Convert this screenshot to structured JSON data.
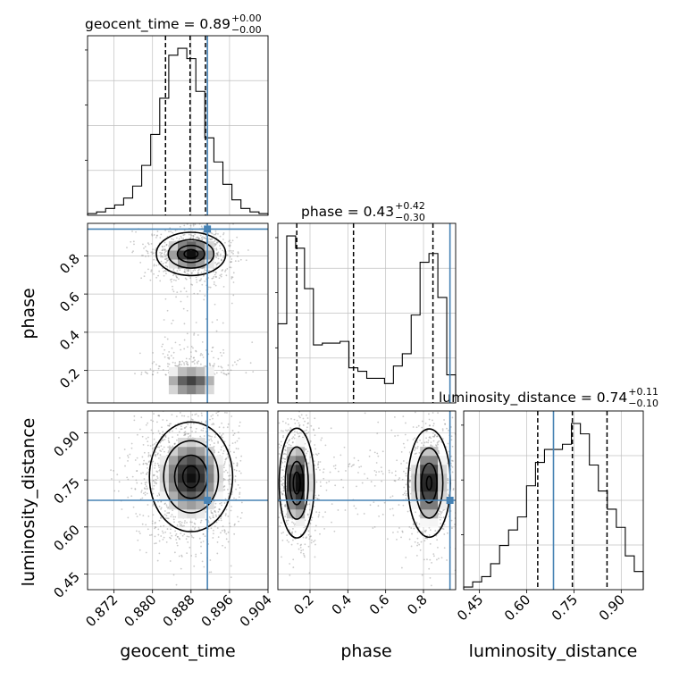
{
  "chart_data": {
    "type": "corner",
    "parameters": [
      "geocent_time",
      "phase",
      "luminosity_distance"
    ],
    "colors": {
      "truth": "#4682b4",
      "hist": "#000000",
      "grid": "#c0c0c0",
      "scatter": "#8a8a8a"
    },
    "panels": {
      "geocent_time": {
        "title_main": "geocent_time = 0.89",
        "title_sup": "+0.00",
        "title_sub": "−0.00",
        "range": [
          0.8665,
          0.904
        ],
        "ticks": [
          0.872,
          0.88,
          0.888,
          0.896,
          0.904
        ],
        "tick_labels": [
          "0.872",
          "0.880",
          "0.888",
          "0.896",
          "0.904"
        ],
        "xlabel": "geocent_time",
        "quantiles": [
          0.8827,
          0.8878,
          0.891
        ],
        "truth": 0.8914,
        "hist_edges_range": [
          0.8665,
          0.904
        ],
        "hist": [
          1,
          2,
          4,
          6,
          10,
          17,
          29,
          47,
          68,
          93,
          97,
          91,
          72,
          45,
          31,
          18,
          9,
          4,
          2,
          1
        ]
      },
      "phase": {
        "title_main": "phase = 0.43",
        "title_sup": "+0.42",
        "title_sub": "−0.30",
        "range": [
          0.03,
          0.97
        ],
        "ticks": [
          0.2,
          0.4,
          0.6,
          0.8
        ],
        "tick_labels": [
          "0.2",
          "0.4",
          "0.6",
          "0.8"
        ],
        "xlabel": "phase",
        "ylabel": "phase",
        "quantiles": [
          0.13,
          0.43,
          0.85
        ],
        "truth": 0.94,
        "hist_edges_range": [
          0.03,
          0.97
        ],
        "hist": [
          45,
          95,
          88,
          65,
          33,
          34,
          34,
          35,
          20,
          18,
          14,
          14,
          11,
          21,
          28,
          50,
          80,
          85,
          60,
          16
        ]
      },
      "luminosity_distance": {
        "title_main": "luminosity_distance = 0.74",
        "title_sup": "+0.11",
        "title_sub": "−0.10",
        "range": [
          0.4,
          0.97
        ],
        "ticks": [
          0.45,
          0.6,
          0.75,
          0.9
        ],
        "tick_labels": [
          "0.45",
          "0.60",
          "0.75",
          "0.90"
        ],
        "xlabel": "luminosity_distance",
        "ylabel": "luminosity_distance",
        "quantiles": [
          0.635,
          0.745,
          0.855
        ],
        "truth": 0.685,
        "hist_edges_range": [
          0.4,
          0.97
        ],
        "hist": [
          1,
          3,
          5,
          10,
          17,
          23,
          28,
          40,
          49,
          54,
          54,
          56,
          64,
          60,
          48,
          38,
          31,
          24,
          13,
          7
        ]
      }
    },
    "blobs": {
      "phase_vs_geocent_time": [
        {
          "x": 0.888,
          "y": 0.81,
          "sx": 0.0035,
          "sy": 0.055,
          "w": 1.0
        },
        {
          "x": 0.888,
          "y": 0.14,
          "sx": 0.0038,
          "sy": 0.055,
          "w": 0.85
        },
        {
          "x": 0.8882,
          "y": 0.47,
          "sx": 0.0028,
          "sy": 0.16,
          "w": 0.12
        }
      ],
      "luminosity_distance_vs_geocent_time": [
        {
          "x": 0.888,
          "y": 0.76,
          "sx": 0.0042,
          "sy": 0.085,
          "w": 1.0
        }
      ],
      "luminosity_distance_vs_phase": [
        {
          "x": 0.13,
          "y": 0.74,
          "sx": 0.045,
          "sy": 0.085,
          "w": 1.0
        },
        {
          "x": 0.83,
          "y": 0.74,
          "sx": 0.055,
          "sy": 0.085,
          "w": 0.95
        },
        {
          "x": 0.45,
          "y": 0.73,
          "sx": 0.13,
          "sy": 0.06,
          "w": 0.12
        }
      ]
    }
  }
}
